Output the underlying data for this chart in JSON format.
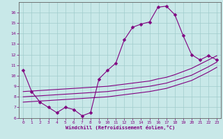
{
  "xlabel": "Windchill (Refroidissement éolien,°C)",
  "background_color": "#c8e8e8",
  "line_color": "#800080",
  "grid_color": "#a0cccc",
  "spine_color": "#606060",
  "x_data": [
    0,
    1,
    2,
    3,
    4,
    5,
    6,
    7,
    8,
    9,
    10,
    11,
    12,
    13,
    14,
    15,
    16,
    17,
    18,
    19,
    20,
    21,
    22,
    23
  ],
  "y_main": [
    10.5,
    8.5,
    7.5,
    7.0,
    6.5,
    7.0,
    6.8,
    6.2,
    6.5,
    9.7,
    10.5,
    11.2,
    13.4,
    14.6,
    14.9,
    15.1,
    16.5,
    16.6,
    15.8,
    13.8,
    12.0,
    11.5,
    11.9,
    11.5
  ],
  "y_line_top": [
    8.5,
    8.55,
    8.6,
    8.65,
    8.7,
    8.75,
    8.8,
    8.85,
    8.9,
    8.95,
    9.0,
    9.1,
    9.2,
    9.3,
    9.4,
    9.5,
    9.7,
    9.85,
    10.1,
    10.4,
    10.7,
    11.1,
    11.5,
    11.9
  ],
  "y_line_mid": [
    8.0,
    8.05,
    8.1,
    8.15,
    8.2,
    8.25,
    8.3,
    8.35,
    8.4,
    8.45,
    8.5,
    8.6,
    8.7,
    8.8,
    8.9,
    9.0,
    9.15,
    9.3,
    9.55,
    9.8,
    10.05,
    10.45,
    10.85,
    11.3
  ],
  "y_line_bot": [
    7.5,
    7.55,
    7.6,
    7.65,
    7.7,
    7.75,
    7.8,
    7.85,
    7.9,
    7.95,
    8.0,
    8.1,
    8.2,
    8.3,
    8.4,
    8.5,
    8.65,
    8.8,
    9.05,
    9.3,
    9.55,
    9.95,
    10.35,
    10.8
  ],
  "ylim": [
    6,
    17
  ],
  "xlim": [
    -0.5,
    23.5
  ],
  "yticks": [
    6,
    7,
    8,
    9,
    10,
    11,
    12,
    13,
    14,
    15,
    16
  ],
  "xticks": [
    0,
    1,
    2,
    3,
    4,
    5,
    6,
    7,
    8,
    9,
    10,
    11,
    12,
    13,
    14,
    15,
    16,
    17,
    18,
    19,
    20,
    21,
    22,
    23
  ]
}
